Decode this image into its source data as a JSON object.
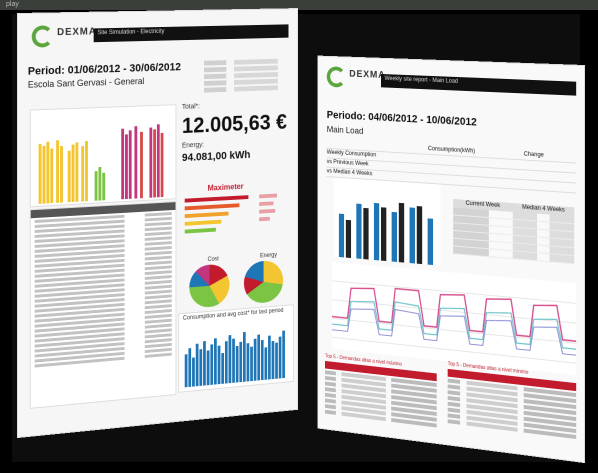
{
  "topbar": {
    "text": "play"
  },
  "pageA": {
    "logo": "DEXMA",
    "header_title": "Site Simulation - Electricity",
    "period": "Period: 01/06/2012 - 30/06/2012",
    "site": "Escola Sant Gervasi - General",
    "total_label": "Total*:",
    "total_value": "12.005,63 €",
    "energy_label": "Energy:",
    "energy_value": "94.081,00 kWh",
    "maximeter_title": "Maximeter",
    "pie_labels": [
      "Cost",
      "Energy"
    ],
    "consumption_title": "Consumption and avg cost* for last period"
  },
  "pageB": {
    "logo": "DEXMA",
    "header_title": "Weekly site report - Main Load",
    "period": "Periodo: 04/06/2012 - 10/06/2012",
    "site": "Main Load",
    "table": {
      "headers": [
        "",
        "Consumption(kWh)",
        "Change"
      ],
      "rows": [
        [
          "Weekly Consumption",
          "",
          ""
        ],
        [
          "vs Previous Week",
          "",
          ""
        ],
        [
          "vs Median 4 Weeks",
          "",
          ""
        ]
      ]
    },
    "side_table_headers": [
      "Current Week",
      "Median 4 Weeks"
    ],
    "top_table_caption_1": "Top 5 - Demandas altas a nivel máximo",
    "top_table_caption_2": "Top 5 - Demandas altas a nivel mínimo"
  }
}
